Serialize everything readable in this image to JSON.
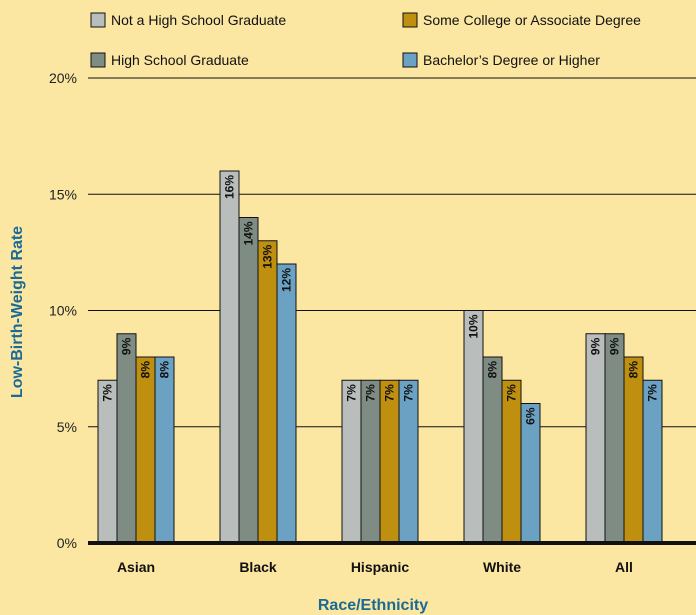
{
  "chart_data": {
    "type": "bar",
    "title": "",
    "xlabel": "Race/Ethnicity",
    "ylabel": "Low-Birth-Weight Rate",
    "ylim": [
      0,
      20
    ],
    "yticks": [
      "0%",
      "5%",
      "10%",
      "15%",
      "20%"
    ],
    "categories": [
      "Asian",
      "Black",
      "Hispanic",
      "White",
      "All"
    ],
    "series": [
      {
        "name": "Not a High School Graduate",
        "color": "#b9bdbc",
        "values": [
          7,
          16,
          7,
          10,
          9
        ],
        "labels": [
          "7%",
          "16%",
          "7%",
          "10%",
          "9%"
        ]
      },
      {
        "name": "High School Graduate",
        "color": "#7e8c84",
        "values": [
          9,
          14,
          7,
          8,
          9
        ],
        "labels": [
          "9%",
          "14%",
          "7%",
          "8%",
          "9%"
        ]
      },
      {
        "name": "Some College or Associate Degree",
        "color": "#bf8f10",
        "values": [
          8,
          13,
          7,
          7,
          8
        ],
        "labels": [
          "8%",
          "13%",
          "7%",
          "7%",
          "8%"
        ]
      },
      {
        "name": "Bachelor’s Degree or Higher",
        "color": "#6ba2c4",
        "values": [
          8,
          12,
          7,
          6,
          7
        ],
        "labels": [
          "8%",
          "12%",
          "7%",
          "6%",
          "7%"
        ]
      }
    ],
    "axis_title_color": "#1a6a96",
    "grid": true,
    "legend_position": "top"
  }
}
